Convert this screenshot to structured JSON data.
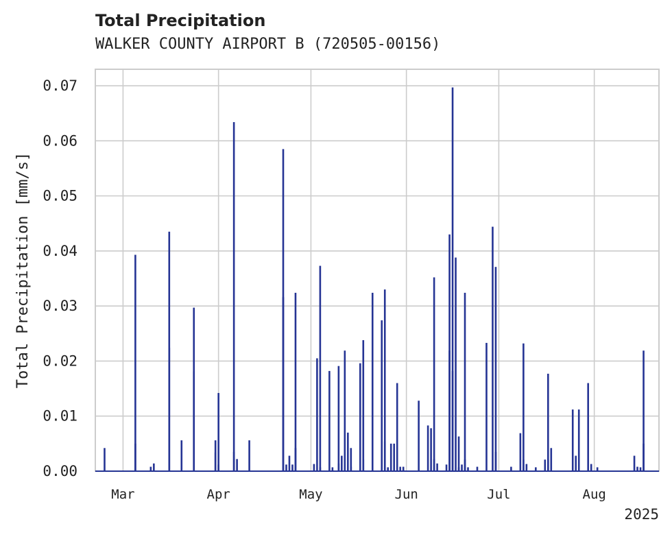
{
  "chart_data": {
    "type": "bar",
    "title": "Total Precipitation",
    "subtitle": "WALKER COUNTY AIRPORT B (720505-00156)",
    "ylabel": "Total Precipitation [mm/s]",
    "xlabel": "",
    "x_axis_kind": "date",
    "xlim": [
      "2025-02-20",
      "2025-08-22"
    ],
    "ylim": [
      0.0,
      0.073
    ],
    "y_ticks": [
      0.0,
      0.01,
      0.02,
      0.03,
      0.04,
      0.05,
      0.06,
      0.07
    ],
    "y_tick_labels": [
      "0.00",
      "0.01",
      "0.02",
      "0.03",
      "0.04",
      "0.05",
      "0.06",
      "0.07"
    ],
    "x_ticks": [
      "2025-03-01",
      "2025-04-01",
      "2025-05-01",
      "2025-06-01",
      "2025-07-01",
      "2025-08-01"
    ],
    "x_tick_labels": [
      "Mar",
      "Apr",
      "May",
      "Jun",
      "Jul",
      "Aug"
    ],
    "x_offset_label": "2025",
    "grid": true,
    "legend": "none",
    "series": [
      {
        "color": "#253494",
        "points": [
          [
            "2025-02-23",
            0.0042
          ],
          [
            "2025-03-05",
            0.005
          ],
          [
            "2025-03-05",
            0.0393
          ],
          [
            "2025-03-10",
            0.0008
          ],
          [
            "2025-03-11",
            0.0014
          ],
          [
            "2025-03-16",
            0.0224
          ],
          [
            "2025-03-16",
            0.0435
          ],
          [
            "2025-03-20",
            0.0056
          ],
          [
            "2025-03-24",
            0.0297
          ],
          [
            "2025-03-24",
            0.0181
          ],
          [
            "2025-03-31",
            0.0034
          ],
          [
            "2025-03-31",
            0.0056
          ],
          [
            "2025-04-01",
            0.0012
          ],
          [
            "2025-04-01",
            0.0142
          ],
          [
            "2025-04-06",
            0.0634
          ],
          [
            "2025-04-06",
            0.0035
          ],
          [
            "2025-04-07",
            0.0022
          ],
          [
            "2025-04-11",
            0.0056
          ],
          [
            "2025-04-22",
            0.0316
          ],
          [
            "2025-04-22",
            0.0585
          ],
          [
            "2025-04-23",
            0.0012
          ],
          [
            "2025-04-24",
            0.0028
          ],
          [
            "2025-04-25",
            0.0012
          ],
          [
            "2025-04-26",
            0.0324
          ],
          [
            "2025-04-26",
            0.0042
          ],
          [
            "2025-05-02",
            0.0013
          ],
          [
            "2025-05-03",
            0.0205
          ],
          [
            "2025-05-04",
            0.0373
          ],
          [
            "2025-05-04",
            0.0007
          ],
          [
            "2025-05-07",
            0.0182
          ],
          [
            "2025-05-08",
            0.0007
          ],
          [
            "2025-05-10",
            0.0014
          ],
          [
            "2025-05-10",
            0.0191
          ],
          [
            "2025-05-11",
            0.0028
          ],
          [
            "2025-05-12",
            0.0219
          ],
          [
            "2025-05-13",
            0.007
          ],
          [
            "2025-05-14",
            0.0042
          ],
          [
            "2025-05-14",
            0.0008
          ],
          [
            "2025-05-17",
            0.0196
          ],
          [
            "2025-05-18",
            0.0238
          ],
          [
            "2025-05-18",
            0.0021
          ],
          [
            "2025-05-21",
            0.0324
          ],
          [
            "2025-05-24",
            0.0274
          ],
          [
            "2025-05-25",
            0.0054
          ],
          [
            "2025-05-25",
            0.033
          ],
          [
            "2025-05-26",
            0.0007
          ],
          [
            "2025-05-27",
            0.005
          ],
          [
            "2025-05-28",
            0.005
          ],
          [
            "2025-05-29",
            0.016
          ],
          [
            "2025-05-30",
            0.0008
          ],
          [
            "2025-05-31",
            0.0008
          ],
          [
            "2025-06-05",
            0.0128
          ],
          [
            "2025-06-08",
            0.0083
          ],
          [
            "2025-06-09",
            0.0078
          ],
          [
            "2025-06-10",
            0.0022
          ],
          [
            "2025-06-10",
            0.0352
          ],
          [
            "2025-06-11",
            0.0014
          ],
          [
            "2025-06-14",
            0.0012
          ],
          [
            "2025-06-15",
            0.0219
          ],
          [
            "2025-06-15",
            0.043
          ],
          [
            "2025-06-16",
            0.0697
          ],
          [
            "2025-06-16",
            0.0182
          ],
          [
            "2025-06-17",
            0.0388
          ],
          [
            "2025-06-18",
            0.0063
          ],
          [
            "2025-06-18",
            0.0007
          ],
          [
            "2025-06-19",
            0.0012
          ],
          [
            "2025-06-20",
            0.0324
          ],
          [
            "2025-06-20",
            0.0021
          ],
          [
            "2025-06-21",
            0.0007
          ],
          [
            "2025-06-24",
            0.0008
          ],
          [
            "2025-06-27",
            0.0233
          ],
          [
            "2025-06-29",
            0.0444
          ],
          [
            "2025-06-30",
            0.0035
          ],
          [
            "2025-06-30",
            0.0371
          ],
          [
            "2025-07-05",
            0.0008
          ],
          [
            "2025-07-08",
            0.0069
          ],
          [
            "2025-07-09",
            0.0021
          ],
          [
            "2025-07-09",
            0.0232
          ],
          [
            "2025-07-10",
            0.0013
          ],
          [
            "2025-07-13",
            0.0007
          ],
          [
            "2025-07-16",
            0.0021
          ],
          [
            "2025-07-17",
            0.0177
          ],
          [
            "2025-07-17",
            0.0021
          ],
          [
            "2025-07-18",
            0.0042
          ],
          [
            "2025-07-25",
            0.0112
          ],
          [
            "2025-07-26",
            0.0028
          ],
          [
            "2025-07-27",
            0.0112
          ],
          [
            "2025-07-30",
            0.016
          ],
          [
            "2025-07-31",
            0.0013
          ],
          [
            "2025-08-02",
            0.0007
          ],
          [
            "2025-08-14",
            0.0028
          ],
          [
            "2025-08-15",
            0.0008
          ],
          [
            "2025-08-16",
            0.0007
          ],
          [
            "2025-08-17",
            0.0219
          ],
          [
            "2025-08-17",
            0.005
          ]
        ]
      }
    ]
  }
}
